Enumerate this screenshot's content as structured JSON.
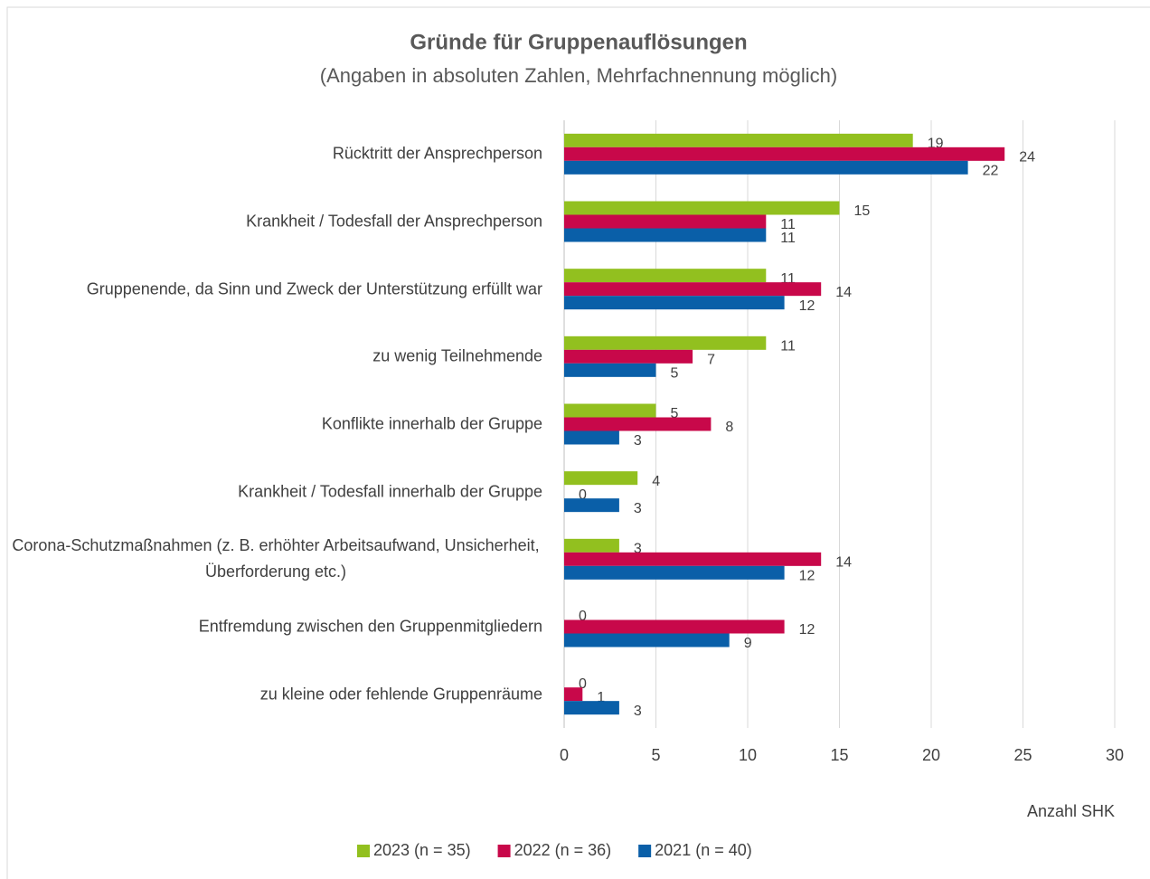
{
  "chart_data": {
    "type": "hbar",
    "title": "Gründe für Gruppenauflösungen",
    "subtitle": "(Angaben in absoluten Zahlen, Mehrfachnennung möglich)",
    "x_label": "Anzahl SHK",
    "categories": [
      "Rücktritt der Ansprechperson",
      "Krankheit / Todesfall der Ansprechperson",
      "Gruppenende, da Sinn und Zweck der Unterstützung erfüllt war",
      "zu wenig Teilnehmende",
      "Konflikte innerhalb der Gruppe",
      "Krankheit / Todesfall innerhalb der Gruppe",
      "Corona-Schutzmaßnahmen (z. B. erhöhter Arbeitsaufwand, Unsicherheit, Überforderung etc.)",
      "Entfremdung zwischen den Gruppenmitgliedern",
      "zu kleine oder fehlende Gruppenräume"
    ],
    "series": [
      {
        "name": "2023 (n = 35)",
        "color": "#92c01f",
        "values": [
          19,
          15,
          11,
          11,
          5,
          4,
          3,
          0,
          0
        ]
      },
      {
        "name": "2022 (n = 36)",
        "color": "#c8084a",
        "values": [
          24,
          11,
          14,
          7,
          8,
          0,
          14,
          12,
          1
        ]
      },
      {
        "name": "2021 (n = 40)",
        "color": "#0a5fa8",
        "values": [
          22,
          11,
          12,
          5,
          3,
          3,
          12,
          9,
          3
        ]
      }
    ],
    "xlim": [
      0,
      30
    ],
    "xticks": [
      0,
      5,
      10,
      15,
      20,
      25,
      30
    ],
    "grid": true,
    "legend": "bottom"
  }
}
